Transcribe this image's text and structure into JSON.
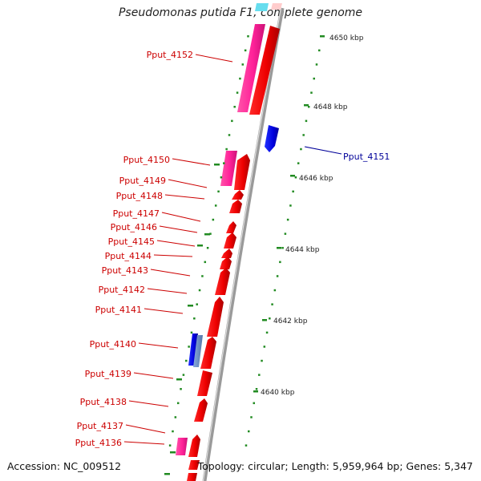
{
  "title": "Pseudomonas putida F1, complete genome",
  "footer": {
    "accession": "Accession: NC_009512",
    "topology": "Topology: circular; Length: 5,959,964 bp; Genes: 5,347"
  },
  "colors": {
    "forward_gene": "#ff0000",
    "reverse_gene": "#0000dd",
    "pseudo_forward": "#ff3399",
    "pseudo_reverse": "#6699cc",
    "leader": "#cc0000",
    "leader_blue": "#000099",
    "tick": "#228b22",
    "backbone": "#999999"
  },
  "scale_labels": [
    "4650 kbp",
    "4648 kbp",
    "4646 kbp",
    "4644 kbp",
    "4642 kbp",
    "4640 kbp"
  ],
  "gene_labels": [
    {
      "text": "Pput_4152",
      "strand": "+"
    },
    {
      "text": "Pput_4151",
      "strand": "-"
    },
    {
      "text": "Pput_4150",
      "strand": "+"
    },
    {
      "text": "Pput_4149",
      "strand": "+"
    },
    {
      "text": "Pput_4148",
      "strand": "+"
    },
    {
      "text": "Pput_4147",
      "strand": "+"
    },
    {
      "text": "Pput_4146",
      "strand": "+"
    },
    {
      "text": "Pput_4145",
      "strand": "+"
    },
    {
      "text": "Pput_4144",
      "strand": "+"
    },
    {
      "text": "Pput_4143",
      "strand": "+"
    },
    {
      "text": "Pput_4142",
      "strand": "+"
    },
    {
      "text": "Pput_4141",
      "strand": "+"
    },
    {
      "text": "Pput_4140",
      "strand": "+"
    },
    {
      "text": "Pput_4139",
      "strand": "+"
    },
    {
      "text": "Pput_4138",
      "strand": "+"
    },
    {
      "text": "Pput_4137",
      "strand": "+"
    },
    {
      "text": "Pput_4136",
      "strand": "+"
    }
  ]
}
